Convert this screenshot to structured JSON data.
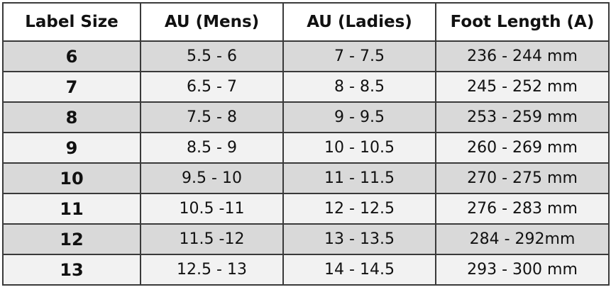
{
  "table": {
    "header": [
      "Label Size",
      "AU (Mens)",
      "AU (Ladies)",
      "Foot Length (A)"
    ],
    "rows": [
      [
        "6",
        "5.5 - 6",
        "7 - 7.5",
        "236 - 244 mm"
      ],
      [
        "7",
        "6.5 - 7",
        "8 - 8.5",
        "245 - 252 mm"
      ],
      [
        "8",
        "7.5 - 8",
        "9 - 9.5",
        "253 - 259 mm"
      ],
      [
        "9",
        "8.5 - 9",
        "10 - 10.5",
        "260 - 269 mm"
      ],
      [
        "10",
        "9.5 - 10",
        "11 - 11.5",
        "270 - 275 mm"
      ],
      [
        "11",
        "10.5 -11",
        "12 - 12.5",
        "276 - 283 mm"
      ],
      [
        "12",
        "11.5 -12",
        "13 - 13.5",
        "284 - 292mm"
      ],
      [
        "13",
        "12.5 - 13",
        "14 - 14.5",
        "293 - 300 mm"
      ]
    ]
  }
}
